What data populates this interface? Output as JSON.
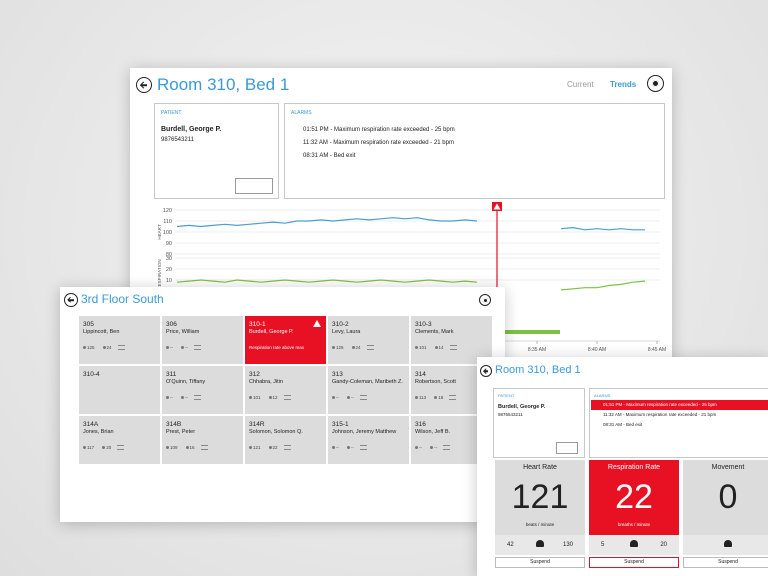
{
  "trends_window": {
    "title": "Room 310, Bed 1",
    "tabs": [
      "Current",
      "Trends"
    ],
    "patient_label": "PATIENT",
    "patient_name": "Burdell,  George P.",
    "patient_id": "9876543211",
    "alarms_label": "ALARMS",
    "alarms": [
      "01:51 PM - Maximum respiration rate exceeded - 25 bpm",
      "11:32 AM - Maximum respiration rate exceeded - 21 bpm",
      "08:31 AM - Bed exit"
    ],
    "chart": {
      "type": "line",
      "x": [
        5,
        6,
        7,
        8,
        9,
        10,
        11,
        12,
        13,
        14,
        15,
        16,
        17,
        18,
        19,
        20,
        21,
        22,
        23,
        24,
        25,
        26,
        27,
        28,
        29,
        30,
        33,
        37,
        38,
        39,
        40,
        41,
        42,
        43,
        44
      ],
      "xlim": [
        5,
        46
      ],
      "xticks": [
        {
          "value": 35,
          "label": "8:35 AM"
        },
        {
          "value": 40,
          "label": "8:40 AM"
        },
        {
          "value": 45,
          "label": "8:45 AM"
        }
      ],
      "panels": [
        {
          "name": "HEART",
          "color": "#4a9fd0",
          "ylim": [
            80,
            120
          ],
          "yticks": [
            80,
            90,
            100,
            110,
            120
          ],
          "values": [
            105,
            106,
            105,
            106,
            107,
            106,
            107,
            108,
            109,
            108,
            110,
            110,
            111,
            110,
            111,
            112,
            111,
            112,
            113,
            112,
            113,
            111,
            110,
            110,
            111,
            110,
            null,
            103,
            104,
            102,
            103,
            102,
            103,
            102,
            102
          ]
        },
        {
          "name": "RESPIRATION",
          "color": "#7dc242",
          "ylim": [
            0,
            30
          ],
          "yticks": [
            10,
            20,
            30
          ],
          "values": [
            8,
            9,
            10,
            9,
            8,
            10,
            9,
            8,
            9,
            10,
            9,
            8,
            9,
            10,
            9,
            8,
            9,
            10,
            9,
            8,
            9,
            10,
            9,
            8,
            9,
            8,
            null,
            1,
            2,
            3,
            3,
            5,
            6,
            8,
            9
          ]
        }
      ]
    }
  },
  "floor_window": {
    "title": "3rd Floor South",
    "tiles": [
      {
        "room": "305",
        "name": "Lippincott, Ben",
        "heart": "125",
        "resp": "24"
      },
      {
        "room": "306",
        "name": "Price, William",
        "heart": "--",
        "resp": "--"
      },
      {
        "room": "310-1",
        "name": "Burdell, George P.",
        "alert": "Respiration rate above max"
      },
      {
        "room": "310-2",
        "name": "Levy, Laura",
        "heart": "125",
        "resp": "24"
      },
      {
        "room": "310-3",
        "name": "Clements, Mark",
        "heart": "101",
        "resp": "14"
      },
      {
        "room": "310-4"
      },
      {
        "room": "311",
        "name": "O'Quinn, Tiffany",
        "heart": "--",
        "resp": "--"
      },
      {
        "room": "312",
        "name": "Chhabra, Jitin",
        "heart": "101",
        "resp": "12"
      },
      {
        "room": "313",
        "name": "Gandy-Coleman, Maribeth Z.",
        "heart": "--",
        "resp": "--"
      },
      {
        "room": "314",
        "name": "Robertson, Scott",
        "heart": "113",
        "resp": "18"
      },
      {
        "room": "314A",
        "name": "Jones, Brian",
        "heart": "117",
        "resp": "20"
      },
      {
        "room": "314B",
        "name": "Prest, Peter",
        "heart": "109",
        "resp": "16"
      },
      {
        "room": "314R",
        "name": "Solomon, Solomon Q.",
        "heart": "121",
        "resp": "22"
      },
      {
        "room": "315-1",
        "name": "Johnson, Jeremy Matthew",
        "heart": "--",
        "resp": "--"
      },
      {
        "room": "316",
        "name": "Wilson, Jeff B.",
        "heart": "--",
        "resp": "--"
      }
    ]
  },
  "detail_window": {
    "title": "Room 310, Bed 1",
    "patient_label": "PATIENT",
    "patient_name": "Burdell,  George P.",
    "patient_id": "9876543211",
    "alarms_label": "ALARMS",
    "alarms": [
      "01:51 PM - Maximum respiration rate exceeded - 25 bpm",
      "11:32 AM - Maximum respiration rate exceeded - 21 bpm",
      "08:31 AM - Bed exit"
    ],
    "cards": [
      {
        "title": "Heart Rate",
        "value": 121,
        "unit": "beats / minute",
        "low": 42,
        "high": 130,
        "action": "Suspend",
        "color": "#dcdcdc"
      },
      {
        "title": "Respiration Rate",
        "value": 22,
        "unit": "breaths / minute",
        "low": 5,
        "high": 20,
        "action": "Suspend",
        "color": "#e81123"
      },
      {
        "title": "Movement",
        "value": 0,
        "action": "Suspend",
        "color": "#dcdcdc"
      }
    ]
  }
}
